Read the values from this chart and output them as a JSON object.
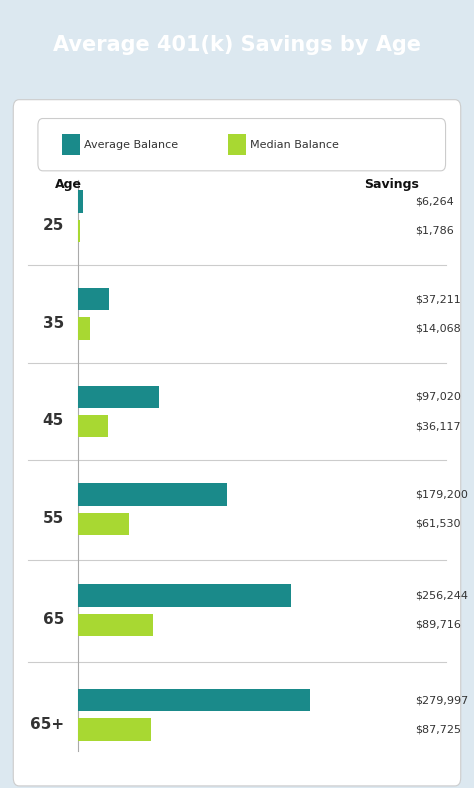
{
  "title": "Average 401(k) Savings by Age",
  "title_bg_color": "#1a8a8a",
  "title_text_color": "#ffffff",
  "background_color": "#dce8f0",
  "chart_bg_color": "#ffffff",
  "age_labels": [
    "25",
    "35",
    "45",
    "55",
    "65",
    "65+"
  ],
  "avg_values": [
    6264,
    37211,
    97020,
    179200,
    256244,
    279997
  ],
  "med_values": [
    1786,
    14068,
    36117,
    61530,
    89716,
    87725
  ],
  "avg_labels": [
    "$6,264",
    "$37,211",
    "$97,020",
    "$179,200",
    "$256,244",
    "$279,997"
  ],
  "med_labels": [
    "$1,786",
    "$14,068",
    "$36,117",
    "$61,530",
    "$89,716",
    "$87,725"
  ],
  "avg_color": "#1a8a8a",
  "med_color": "#a8d832",
  "max_value": 300000,
  "legend_avg": "Average Balance",
  "legend_med": "Median Balance",
  "age_header": "Age",
  "savings_header": "Savings",
  "separator_color": "#cccccc",
  "label_color": "#333333",
  "header_color": "#111111"
}
